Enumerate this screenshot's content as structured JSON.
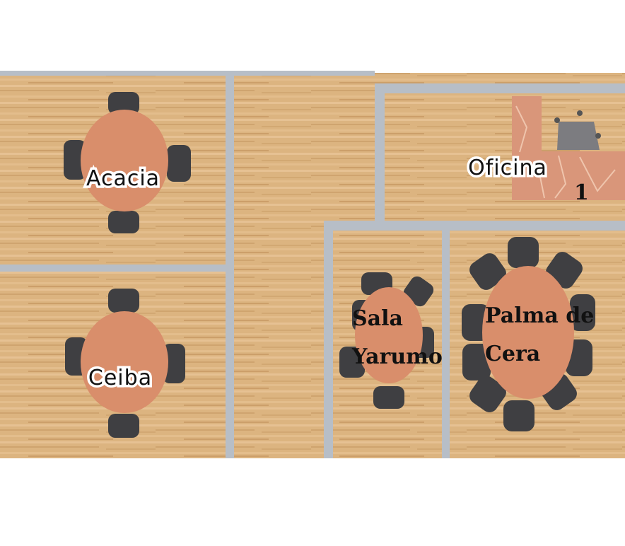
{
  "floorplan": {
    "rooms": [
      {
        "id": "acacia",
        "label": "Acacia"
      },
      {
        "id": "ceiba",
        "label": "Ceiba"
      },
      {
        "id": "oficina",
        "label": "Oficina",
        "badge": "1"
      },
      {
        "id": "sala-yarumo",
        "label_lines": [
          "Sala",
          "Yarumo"
        ]
      },
      {
        "id": "palma-de-cera",
        "label_lines": [
          "Palma de",
          "Cera"
        ]
      }
    ]
  },
  "colors": {
    "floor": "#deb887",
    "wall": "#b7bec7",
    "table": "#d98e6b",
    "chair": "#3f3f42"
  }
}
